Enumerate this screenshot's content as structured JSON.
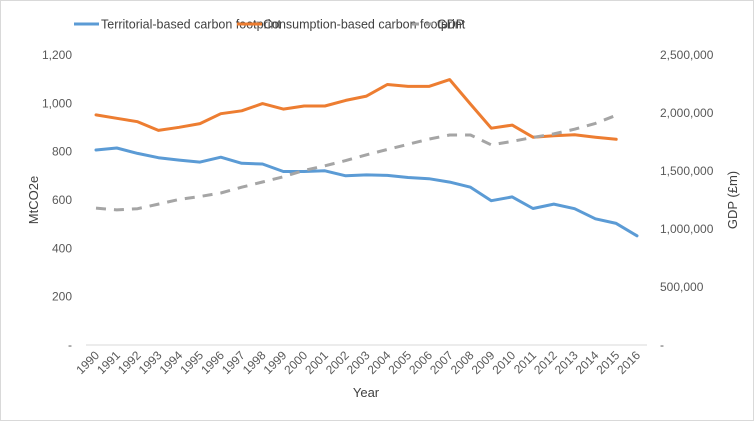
{
  "chart_data": {
    "type": "line",
    "title": "",
    "xlabel": "Year",
    "ylabel": "MtCO2e",
    "y2label": "GDP (£m)",
    "x": [
      1990,
      1991,
      1992,
      1993,
      1994,
      1995,
      1996,
      1997,
      1998,
      1999,
      2000,
      2001,
      2002,
      2003,
      2004,
      2005,
      2006,
      2007,
      2008,
      2009,
      2010,
      2011,
      2012,
      2013,
      2014,
      2015,
      2016
    ],
    "x_tick_labels": [
      "1990",
      "1991",
      "1992",
      "1993",
      "1994",
      "1995",
      "1996",
      "1997",
      "1998",
      "1999",
      "2000",
      "2001",
      "2002",
      "2003",
      "2004",
      "2005",
      "2006",
      "2007",
      "2008",
      "2009",
      "2010",
      "2011",
      "2012",
      "2013",
      "2014",
      "2015",
      "2016"
    ],
    "ylim": [
      0,
      1200
    ],
    "y_ticks": [
      0,
      200,
      400,
      600,
      800,
      1000,
      1200
    ],
    "y_tick_labels": [
      "-",
      "200",
      "400",
      "600",
      "800",
      "1,000",
      "1,200"
    ],
    "y2lim": [
      0,
      2500000
    ],
    "y2_ticks": [
      0,
      500000,
      1000000,
      1500000,
      2000000,
      2500000
    ],
    "y2_tick_labels": [
      "-",
      "500,000",
      "1,000,000",
      "1,500,000",
      "2,000,000",
      "2,500,000"
    ],
    "grid": false,
    "legend_position": "top",
    "series": [
      {
        "name": "Territorial-based carbon footprint",
        "axis": "left",
        "color": "#5b9bd5",
        "style": "solid",
        "values": [
          807,
          815,
          793,
          775,
          765,
          757,
          777,
          752,
          749,
          718,
          718,
          721,
          700,
          704,
          702,
          693,
          688,
          674,
          653,
          597,
          613,
          565,
          583,
          564,
          522,
          503,
          452
        ]
      },
      {
        "name": "Consumption-based carbon footprint",
        "axis": "left",
        "color": "#ed7d31",
        "style": "solid",
        "values": [
          952,
          938,
          924,
          888,
          901,
          916,
          957,
          969,
          999,
          976,
          989,
          989,
          1012,
          1030,
          1078,
          1070,
          1070,
          1098,
          997,
          897,
          910,
          860,
          866,
          870,
          860,
          851,
          null
        ]
      },
      {
        "name": "GDP",
        "axis": "right",
        "color": "#a5a5a5",
        "style": "dashed",
        "values": [
          1180000,
          1165000,
          1175000,
          1215000,
          1255000,
          1280000,
          1310000,
          1360000,
          1405000,
          1450000,
          1505000,
          1545000,
          1590000,
          1640000,
          1685000,
          1730000,
          1775000,
          1810000,
          1810000,
          1725000,
          1755000,
          1790000,
          1820000,
          1860000,
          1910000,
          1980000,
          null
        ]
      }
    ]
  }
}
